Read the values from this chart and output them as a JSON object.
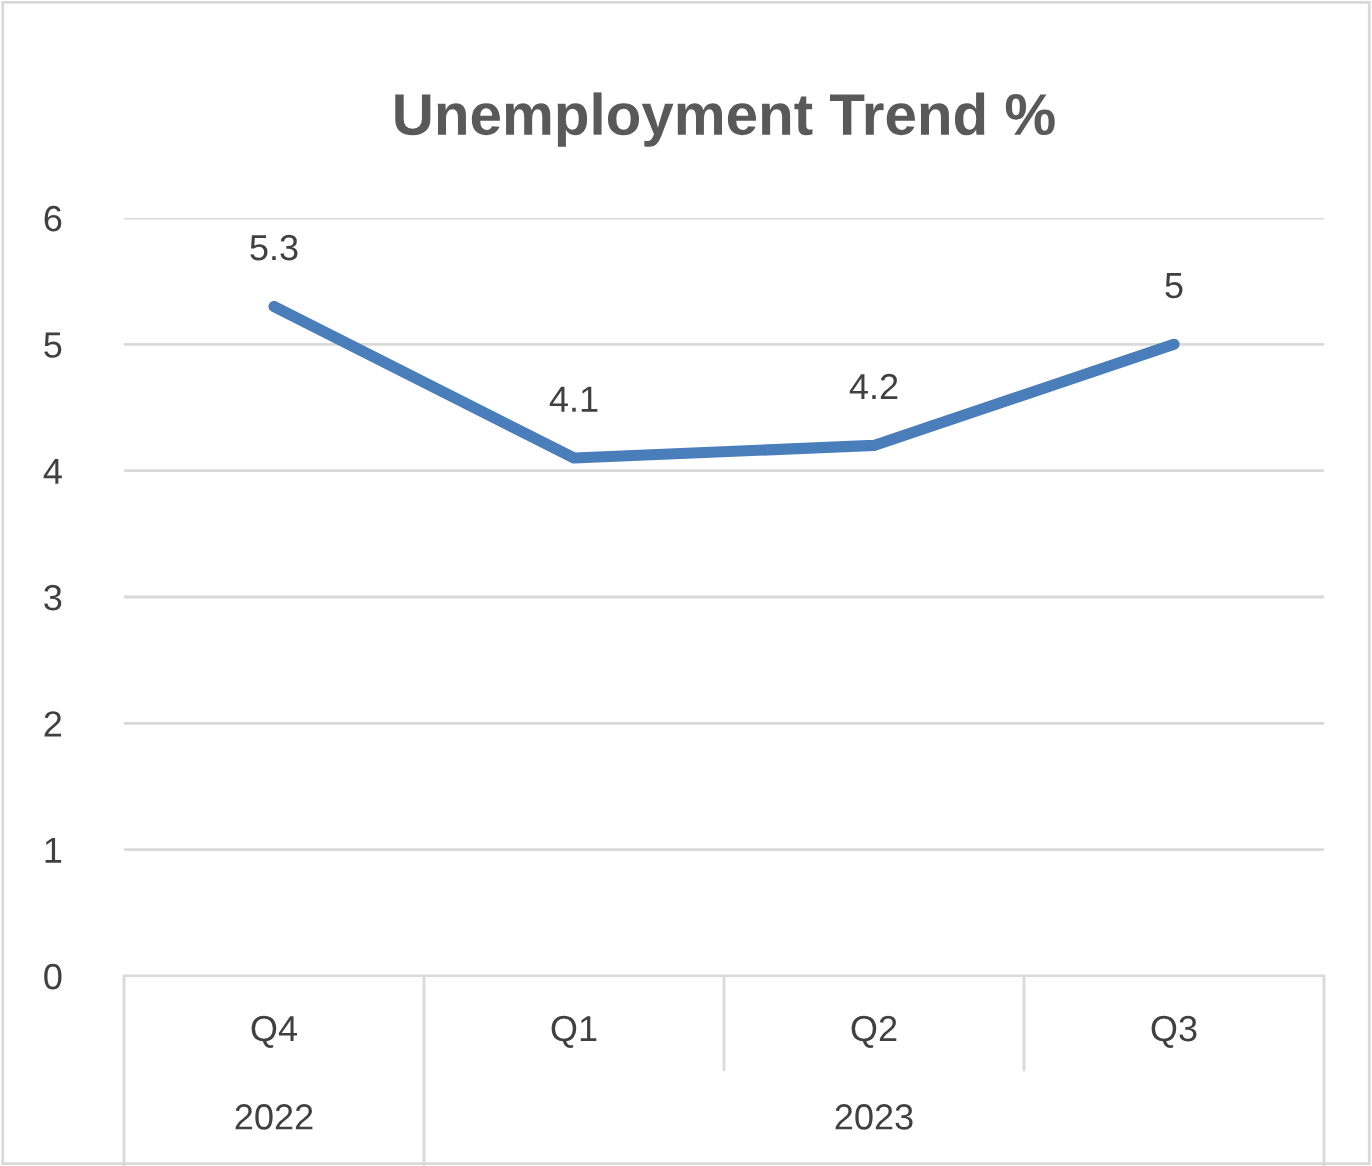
{
  "chart_data": {
    "type": "line",
    "title": "Unemployment Trend %",
    "categories": [
      "Q4",
      "Q1",
      "Q2",
      "Q3"
    ],
    "series": [
      {
        "color": "#4a7ebb",
        "values": [
          5.3,
          4.1,
          4.2,
          5
        ]
      }
    ],
    "ylim": [
      0,
      6
    ],
    "yticks": [
      0,
      1,
      2,
      3,
      4,
      5,
      6
    ],
    "grid": "y",
    "data_labels": true,
    "legend": false,
    "marker": "none",
    "line_style": "solid",
    "annotations": [
      "2022",
      "2023"
    ]
  }
}
